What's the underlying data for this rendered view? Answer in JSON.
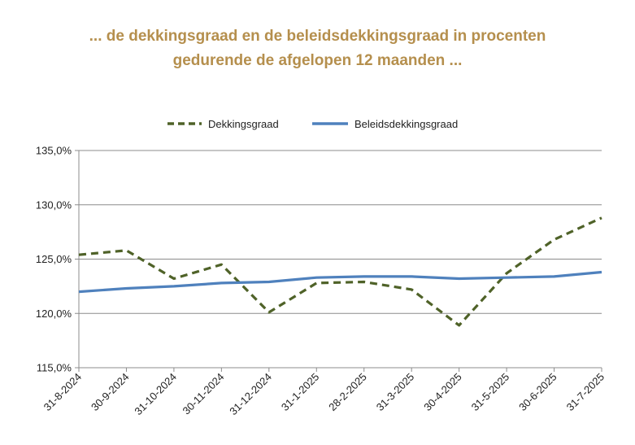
{
  "chart_data": {
    "type": "line",
    "title_line1": "... de dekkingsgraad en de beleidsdekkingsgraad in procenten",
    "title_line2": "gedurende de afgelopen 12 maanden ...",
    "categories": [
      "31-8-2024",
      "30-9-2024",
      "31-10-2024",
      "30-11-2024",
      "31-12-2024",
      "31-1-2025",
      "28-2-2025",
      "31-3-2025",
      "30-4-2025",
      "31-5-2025",
      "30-6-2025",
      "31-7-2025"
    ],
    "ylim": [
      115,
      135
    ],
    "y_ticks": [
      115,
      120,
      125,
      130,
      135
    ],
    "y_tick_labels": [
      "115,0%",
      "120,0%",
      "125,0%",
      "130,0%",
      "135,0%"
    ],
    "legend_position": "top-center",
    "grid": true,
    "series": [
      {
        "name": "Dekkingsgraad",
        "style": "dashed",
        "color": "#4f6228",
        "values": [
          125.4,
          125.8,
          123.2,
          124.5,
          120.1,
          122.8,
          122.9,
          122.2,
          118.9,
          123.7,
          126.8,
          128.8
        ]
      },
      {
        "name": "Beleidsdekkingsgraad",
        "style": "solid",
        "color": "#4f81bd",
        "values": [
          122.0,
          122.3,
          122.5,
          122.8,
          122.9,
          123.3,
          123.4,
          123.4,
          123.2,
          123.3,
          123.4,
          123.8
        ]
      }
    ]
  }
}
